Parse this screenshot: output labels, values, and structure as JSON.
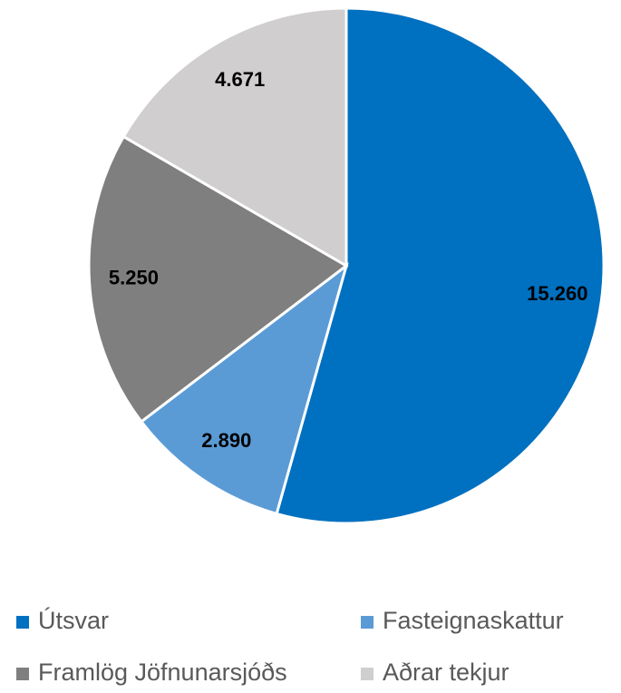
{
  "chart_data": {
    "type": "pie",
    "categories": [
      "Útsvar",
      "Fasteignaskattur",
      "Framlög Jöfnunarsjóðs",
      "Aðrar tekjur"
    ],
    "values": [
      15260,
      2890,
      5250,
      4671
    ],
    "value_labels": [
      "15.260",
      "2.890",
      "5.250",
      "4.671"
    ],
    "colors": [
      "#0070c0",
      "#5b9bd5",
      "#7f7f7f",
      "#d0cece"
    ],
    "legend": "bottom"
  }
}
